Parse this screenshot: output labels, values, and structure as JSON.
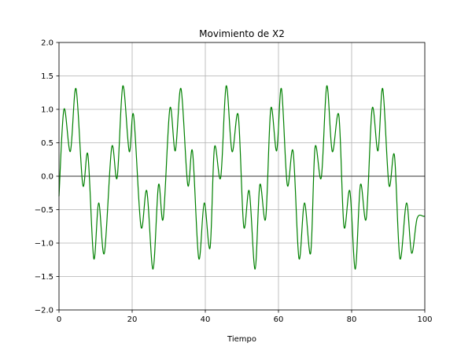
{
  "chart_data": {
    "type": "line",
    "title": "Movimiento de X2",
    "xlabel": "Tiempo",
    "ylabel": "",
    "xlim": [
      0,
      100
    ],
    "ylim": [
      -2.0,
      2.0
    ],
    "xticks": [
      0,
      20,
      40,
      60,
      80,
      100
    ],
    "yticks": [
      -2.0,
      -1.5,
      -1.0,
      -0.5,
      0.0,
      0.5,
      1.0,
      1.5,
      2.0
    ],
    "xtick_labels": [
      "0",
      "20",
      "40",
      "60",
      "80",
      "100"
    ],
    "ytick_labels": [
      "−2.0",
      "−1.5",
      "−1.0",
      "−0.5",
      "0.0",
      "0.5",
      "1.0",
      "1.5",
      "2.0"
    ],
    "grid": true,
    "zero_line": true,
    "series": [
      {
        "color": "#008000",
        "x": [
          0,
          1.35,
          3.1,
          4.65,
          6.5,
          7.9,
          9.5,
          10.85,
          12.4,
          14.4,
          15.9,
          17.45,
          19.2,
          20.4,
          22.4,
          24.0,
          25.7,
          27.2,
          28.5,
          30.3,
          31.8,
          33.35,
          35.2,
          36.5,
          38.2,
          39.7,
          41.3,
          42.5,
          44.2,
          45.7,
          47.3,
          49.0,
          50.5,
          52.0,
          53.6,
          54.9,
          56.5,
          57.9,
          59.5,
          60.8,
          62.4,
          64.0,
          65.6,
          67.1,
          68.8,
          70.0,
          71.7,
          73.2,
          74.7,
          76.5,
          77.9,
          79.5,
          81.0,
          82.4,
          84.0,
          85.6,
          87.2,
          88.5,
          90.2,
          91.7,
          93.2,
          95.0,
          96.4,
          97.9,
          99.7,
          100
        ],
        "y": [
          -0.3,
          1.0,
          0.37,
          1.31,
          -0.13,
          0.32,
          -1.23,
          -0.4,
          -1.15,
          0.43,
          -0.02,
          1.35,
          0.37,
          0.91,
          -0.75,
          -0.22,
          -1.39,
          -0.13,
          -0.63,
          1.01,
          0.38,
          1.31,
          -0.13,
          0.37,
          -1.23,
          -0.4,
          -1.07,
          0.43,
          -0.02,
          1.35,
          0.37,
          0.91,
          -0.75,
          -0.22,
          -1.39,
          -0.13,
          -0.63,
          1.01,
          0.38,
          1.31,
          -0.13,
          0.37,
          -1.23,
          -0.4,
          -1.15,
          0.43,
          -0.02,
          1.35,
          0.37,
          0.91,
          -0.75,
          -0.22,
          -1.39,
          -0.13,
          -0.63,
          1.01,
          0.38,
          1.31,
          -0.13,
          0.31,
          -1.23,
          -0.4,
          -1.15,
          -0.63,
          -0.6,
          -0.6
        ]
      }
    ]
  }
}
